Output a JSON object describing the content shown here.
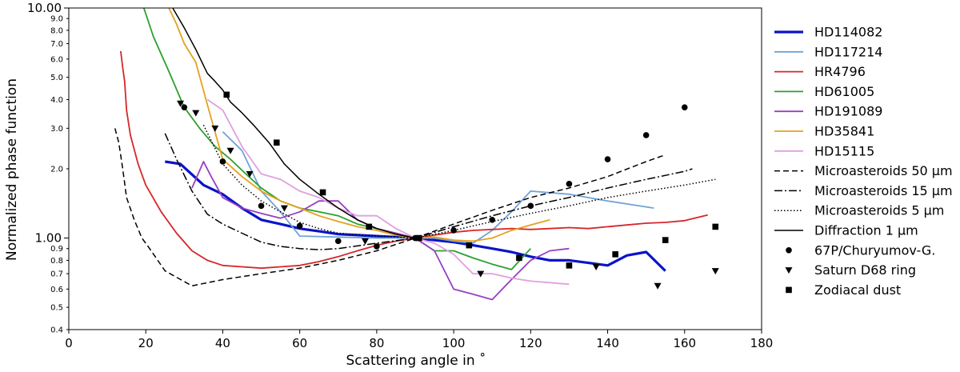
{
  "chart_data": {
    "type": "line",
    "xlabel": "Scattering angle in  ˚",
    "ylabel": "Normalized phase function",
    "xlim": [
      0,
      180
    ],
    "ylim": [
      0.4,
      10
    ],
    "yscale": "log",
    "x_ticks": [
      0,
      20,
      40,
      60,
      80,
      100,
      120,
      140,
      160,
      180
    ],
    "x_tick_labels": [
      "0",
      "20",
      "40",
      "60",
      "80",
      "100",
      "120",
      "140",
      "160",
      "180"
    ],
    "y_major_ticks": [
      1,
      10
    ],
    "y_major_tick_labels": [
      "1.00",
      "10.00"
    ],
    "y_minor_ticks": [
      0.4,
      0.5,
      0.6,
      0.7,
      0.8,
      0.9,
      2,
      3,
      4,
      5,
      6,
      7,
      8,
      9
    ],
    "y_minor_tick_labels": [
      "0.4",
      "0.5",
      "0.6",
      "0.7",
      "0.8",
      "0.9",
      "2.0",
      "3.0",
      "4.0",
      "5.0",
      "6.0",
      "7.0",
      "8.0",
      "9.0"
    ],
    "legend_position": "outside-right",
    "series": [
      {
        "name": "HD114082",
        "color": "#0a14c8",
        "dash": "solid",
        "width": 3.2,
        "kind": "line",
        "x": [
          25,
          29,
          35,
          40,
          45,
          50,
          55,
          60,
          65,
          70,
          75,
          80,
          85,
          90,
          95,
          100,
          105,
          110,
          115,
          120,
          125,
          130,
          135,
          140,
          145,
          150,
          155
        ],
        "y": [
          2.15,
          2.1,
          1.7,
          1.55,
          1.35,
          1.2,
          1.15,
          1.1,
          1.07,
          1.04,
          1.03,
          1.02,
          1.01,
          1.0,
          0.98,
          0.96,
          0.93,
          0.9,
          0.87,
          0.83,
          0.8,
          0.8,
          0.78,
          0.76,
          0.84,
          0.87,
          0.72
        ]
      },
      {
        "name": "HD117214",
        "color": "#6fa3d6",
        "dash": "solid",
        "width": 1.8,
        "kind": "line",
        "x": [
          40,
          45,
          50,
          55,
          60,
          70,
          80,
          85,
          90,
          95,
          100,
          105,
          110,
          115,
          120,
          130,
          140,
          152
        ],
        "y": [
          2.9,
          2.4,
          1.6,
          1.3,
          1.02,
          1.01,
          1.0,
          1.0,
          1.0,
          1.0,
          0.97,
          0.95,
          1.08,
          1.3,
          1.6,
          1.55,
          1.45,
          1.35
        ]
      },
      {
        "name": "HR4796",
        "color": "#d62728",
        "dash": "solid",
        "width": 1.8,
        "kind": "line",
        "x": [
          13.5,
          14,
          14.5,
          15,
          16,
          18,
          20,
          24,
          28,
          32,
          36,
          40,
          45,
          50,
          55,
          60,
          65,
          70,
          75,
          80,
          85,
          90,
          95,
          100,
          105,
          110,
          115,
          120,
          125,
          130,
          135,
          140,
          145,
          150,
          155,
          160,
          166
        ],
        "y": [
          6.5,
          5.5,
          4.8,
          3.6,
          2.8,
          2.1,
          1.7,
          1.3,
          1.05,
          0.88,
          0.8,
          0.76,
          0.75,
          0.74,
          0.75,
          0.76,
          0.79,
          0.83,
          0.88,
          0.93,
          0.97,
          1.0,
          1.03,
          1.06,
          1.08,
          1.09,
          1.1,
          1.09,
          1.1,
          1.11,
          1.1,
          1.12,
          1.14,
          1.16,
          1.17,
          1.19,
          1.26
        ]
      },
      {
        "name": "HD61005",
        "color": "#2ca02c",
        "dash": "solid",
        "width": 1.8,
        "kind": "line",
        "x": [
          19.5,
          22,
          26,
          30,
          34,
          38,
          42,
          46,
          50,
          55,
          60,
          65,
          70,
          75,
          80,
          85,
          90,
          95,
          100,
          105,
          110,
          115,
          120
        ],
        "y": [
          10,
          7.5,
          5.3,
          3.7,
          3.0,
          2.5,
          2.2,
          1.9,
          1.65,
          1.45,
          1.35,
          1.3,
          1.25,
          1.15,
          1.1,
          1.05,
          1.0,
          0.88,
          0.88,
          0.82,
          0.77,
          0.73,
          0.9
        ]
      },
      {
        "name": "HD191089",
        "color": "#9740c0",
        "dash": "solid",
        "width": 1.8,
        "kind": "line",
        "x": [
          32,
          35,
          37,
          40,
          45,
          50,
          55,
          60,
          65,
          70,
          75,
          80,
          85,
          90,
          95,
          100,
          105,
          110,
          115,
          120,
          125,
          130
        ],
        "y": [
          1.65,
          2.15,
          1.85,
          1.5,
          1.35,
          1.28,
          1.22,
          1.3,
          1.45,
          1.45,
          1.2,
          1.1,
          1.05,
          1.0,
          0.88,
          0.6,
          0.57,
          0.54,
          0.66,
          0.8,
          0.88,
          0.9
        ]
      },
      {
        "name": "HD35841",
        "color": "#e6a020",
        "dash": "solid",
        "width": 1.8,
        "kind": "line",
        "x": [
          26,
          28,
          30,
          33,
          36,
          40,
          45,
          50,
          55,
          60,
          65,
          70,
          75,
          80,
          85,
          90,
          95,
          100,
          105,
          110,
          115,
          120,
          125
        ],
        "y": [
          10,
          8.5,
          7,
          5.8,
          3.8,
          2.2,
          1.85,
          1.6,
          1.45,
          1.35,
          1.25,
          1.18,
          1.12,
          1.08,
          1.03,
          1.0,
          1.01,
          0.98,
          0.97,
          1.0,
          1.08,
          1.14,
          1.2
        ]
      },
      {
        "name": "HD15115",
        "color": "#e0a0e0",
        "dash": "solid",
        "width": 1.8,
        "kind": "line",
        "x": [
          36,
          40,
          45,
          50,
          55,
          60,
          65,
          70,
          75,
          80,
          85,
          90,
          95,
          100,
          105,
          110,
          115,
          120,
          125,
          130
        ],
        "y": [
          4.0,
          3.6,
          2.5,
          1.9,
          1.8,
          1.6,
          1.5,
          1.35,
          1.25,
          1.25,
          1.1,
          1.0,
          0.95,
          0.85,
          0.7,
          0.7,
          0.67,
          0.65,
          0.64,
          0.63
        ]
      },
      {
        "name": "Microasteroids 50 μm",
        "color": "#000000",
        "dash": "7,4",
        "width": 1.5,
        "kind": "line",
        "x": [
          12,
          13,
          14,
          15,
          17,
          19,
          21,
          25,
          32,
          40,
          50,
          60,
          70,
          80,
          90,
          100,
          110,
          120,
          130,
          140,
          150,
          155
        ],
        "y": [
          3.0,
          2.6,
          2.0,
          1.5,
          1.2,
          1.0,
          0.9,
          0.72,
          0.62,
          0.66,
          0.7,
          0.74,
          0.8,
          0.88,
          1.0,
          1.15,
          1.32,
          1.5,
          1.65,
          1.85,
          2.15,
          2.3
        ]
      },
      {
        "name": "Microasteroids 15 μm",
        "color": "#000000",
        "dash": "10,3,2,3",
        "width": 1.5,
        "kind": "line",
        "x": [
          25,
          28,
          32,
          36,
          40,
          45,
          50,
          55,
          60,
          65,
          70,
          80,
          90,
          100,
          110,
          120,
          130,
          140,
          150,
          160,
          162
        ],
        "y": [
          2.85,
          2.2,
          1.6,
          1.27,
          1.15,
          1.05,
          0.96,
          0.92,
          0.9,
          0.89,
          0.9,
          0.95,
          1.0,
          1.12,
          1.25,
          1.38,
          1.5,
          1.65,
          1.8,
          1.95,
          2.0
        ]
      },
      {
        "name": "Microasteroids 5 μm",
        "color": "#000000",
        "dash": "1.5,2.5",
        "width": 1.5,
        "kind": "line",
        "x": [
          35,
          40,
          45,
          50,
          55,
          60,
          65,
          70,
          80,
          90,
          100,
          110,
          120,
          130,
          140,
          150,
          160,
          168
        ],
        "y": [
          3.1,
          2.1,
          1.7,
          1.45,
          1.3,
          1.17,
          1.1,
          1.05,
          1.02,
          1.0,
          1.08,
          1.18,
          1.28,
          1.38,
          1.5,
          1.6,
          1.7,
          1.8
        ]
      },
      {
        "name": "Diffraction 1 μm",
        "color": "#000000",
        "dash": "solid",
        "width": 1.5,
        "kind": "line",
        "x": [
          27,
          30,
          33,
          36,
          38,
          40,
          42,
          45,
          48,
          52,
          56,
          60,
          65,
          70,
          75,
          80,
          85,
          90
        ],
        "y": [
          10,
          8.2,
          6.6,
          5.2,
          4.8,
          4.4,
          3.9,
          3.5,
          3.1,
          2.6,
          2.1,
          1.8,
          1.55,
          1.35,
          1.2,
          1.1,
          1.04,
          1.0
        ]
      },
      {
        "name": "67P/Churyumov-G.",
        "color": "#000000",
        "kind": "marker",
        "marker": "circle",
        "x": [
          30,
          40,
          50,
          60,
          70,
          80,
          90,
          100,
          110,
          120,
          130,
          140,
          150,
          160
        ],
        "y": [
          3.7,
          2.15,
          1.38,
          1.13,
          0.97,
          0.92,
          1.0,
          1.08,
          1.2,
          1.38,
          1.72,
          2.2,
          2.8,
          3.7
        ]
      },
      {
        "name": "Saturn D68 ring",
        "color": "#000000",
        "kind": "marker",
        "marker": "triangle",
        "x": [
          29,
          33,
          38,
          42,
          47,
          56,
          77,
          107,
          137,
          153,
          168
        ],
        "y": [
          3.85,
          3.5,
          3.0,
          2.4,
          1.9,
          1.35,
          0.97,
          0.7,
          0.75,
          0.62,
          0.72
        ]
      },
      {
        "name": "Zodiacal dust",
        "color": "#000000",
        "kind": "marker",
        "marker": "square",
        "x": [
          41,
          54,
          66,
          78,
          91,
          104,
          117,
          130,
          142,
          155,
          168
        ],
        "y": [
          4.2,
          2.6,
          1.58,
          1.12,
          1.0,
          0.93,
          0.82,
          0.76,
          0.85,
          0.98,
          1.12
        ]
      }
    ]
  }
}
